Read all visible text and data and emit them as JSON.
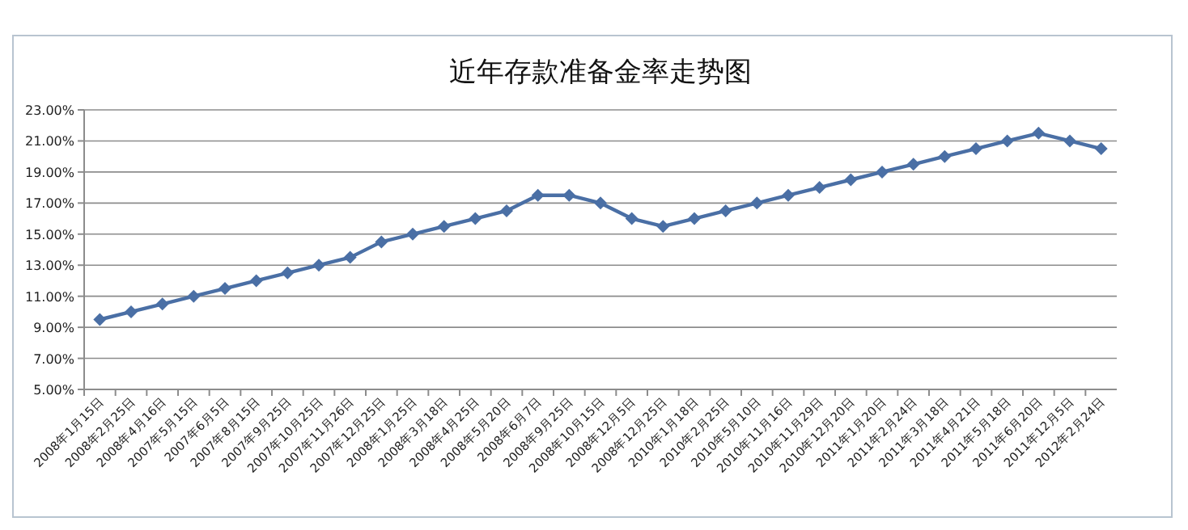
{
  "chart_data": {
    "type": "line",
    "title": "近年存款准备金率走势图",
    "categories": [
      "2008年1月15日",
      "2008年2月25日",
      "2008年4月16日",
      "2007年5月15日",
      "2007年6月5日",
      "2007年8月15日",
      "2007年9月25日",
      "2007年10月25日",
      "2007年11月26日",
      "2007年12月25日",
      "2008年1月25日",
      "2008年3月18日",
      "2008年4月25日",
      "2008年5月20日",
      "2008年6月7日",
      "2008年9月25日",
      "2008年10月15日",
      "2008年12月5日",
      "2008年12月25日",
      "2010年1月18日",
      "2010年2月25日",
      "2010年5月10日",
      "2010年11月16日",
      "2010年11月29日",
      "2010年12月20日",
      "2011年1月20日",
      "2011年2月24日",
      "2011年3月18日",
      "2011年4月21日",
      "2011年5月18日",
      "2011年6月20日",
      "2011年12月5日",
      "2012年2月24日"
    ],
    "series": [
      {
        "color": "#4a6fa5",
        "values": [
          9.5,
          10,
          10.5,
          11,
          11.5,
          12,
          12.5,
          13,
          13.5,
          14.5,
          15,
          15.5,
          16,
          16.5,
          17.5,
          17.5,
          17,
          16,
          15.5,
          16,
          16.5,
          17,
          17.5,
          18,
          18.5,
          19,
          19.5,
          20,
          20.5,
          21,
          21.5,
          21,
          20.5
        ]
      }
    ],
    "ylim": [
      5,
      23
    ],
    "yticks": [
      {
        "value": 5,
        "label": "5.00%"
      },
      {
        "value": 7,
        "label": "7.00%"
      },
      {
        "value": 9,
        "label": "9.00%"
      },
      {
        "value": 11,
        "label": "11.00%"
      },
      {
        "value": 13,
        "label": "13.00%"
      },
      {
        "value": 15,
        "label": "15.00%"
      },
      {
        "value": 17,
        "label": "17.00%"
      },
      {
        "value": 19,
        "label": "19.00%"
      },
      {
        "value": 21,
        "label": "21.00%"
      },
      {
        "value": 23,
        "label": "23.00%"
      }
    ],
    "grid": "y",
    "marker": "diamond",
    "line_style": "solid"
  }
}
